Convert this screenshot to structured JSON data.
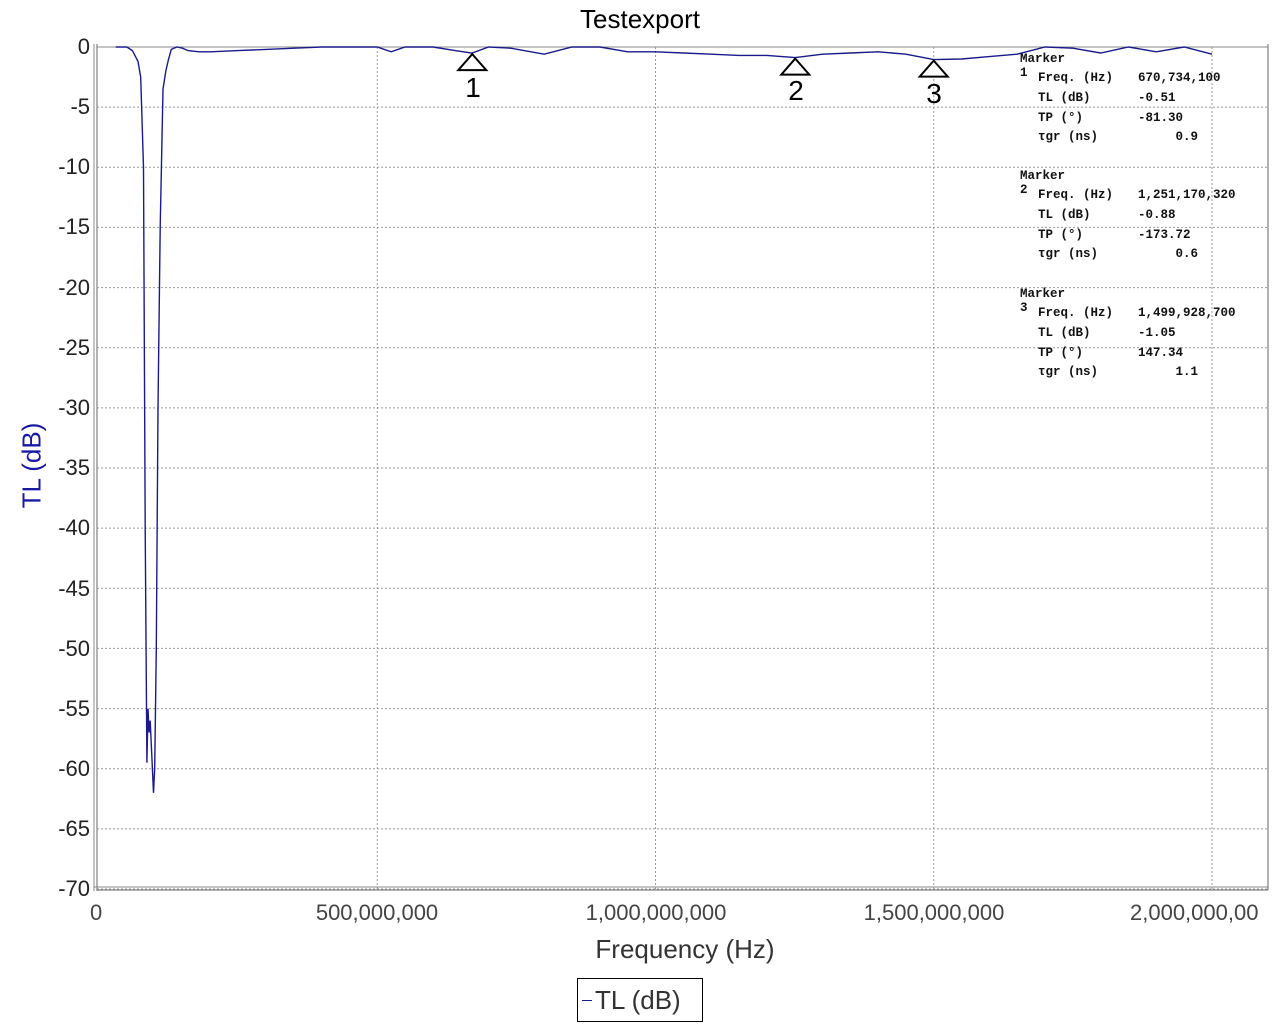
{
  "chart_data": {
    "type": "line",
    "title": "Testexport",
    "xlabel": "Frequency (Hz)",
    "ylabel": "TL (dB)",
    "xlim": [
      0,
      2000000000
    ],
    "ylim": [
      -70,
      0
    ],
    "grid": true,
    "legend_position": "bottom",
    "x_ticks": [
      "0",
      "500,000,000",
      "1,000,000,000",
      "1,500,000,000",
      "2,000,000,00"
    ],
    "y_ticks": [
      "0",
      "-5",
      "-10",
      "-15",
      "-20",
      "-25",
      "-30",
      "-35",
      "-40",
      "-45",
      "-50",
      "-55",
      "-60",
      "-65",
      "-70"
    ],
    "series": [
      {
        "name": "TL (dB)",
        "color": "#1a1a8a",
        "x": [
          30000000,
          50000000,
          60000000,
          70000000,
          75000000,
          80000000,
          83000000,
          86000000,
          88000000,
          90000000,
          92000000,
          94000000,
          96000000,
          98000000,
          100000000,
          103000000,
          106000000,
          110000000,
          115000000,
          120000000,
          125000000,
          130000000,
          140000000,
          150000000,
          160000000,
          180000000,
          200000000,
          250000000,
          300000000,
          350000000,
          400000000,
          450000000,
          500000000,
          525000000,
          550000000,
          600000000,
          640000000,
          670000000,
          700000000,
          740000000,
          800000000,
          850000000,
          900000000,
          950000000,
          1000000000,
          1050000000,
          1100000000,
          1150000000,
          1200000000,
          1251000000,
          1300000000,
          1350000000,
          1400000000,
          1450000000,
          1500000000,
          1550000000,
          1600000000,
          1650000000,
          1700000000,
          1750000000,
          1800000000,
          1850000000,
          1900000000,
          1950000000,
          2000000000
        ],
        "y": [
          0,
          0,
          -0.3,
          -1.2,
          -2.5,
          -10,
          -40,
          -59.5,
          -55,
          -57,
          -56,
          -58,
          -60,
          -62,
          -60,
          -50,
          -30,
          -15,
          -3.5,
          -2,
          -1,
          -0.2,
          0,
          -0.1,
          -0.3,
          -0.4,
          -0.4,
          -0.3,
          -0.2,
          -0.1,
          0,
          0,
          0,
          -0.4,
          0,
          0,
          -0.3,
          -0.51,
          0,
          -0.1,
          -0.6,
          0,
          0,
          -0.4,
          -0.4,
          -0.5,
          -0.6,
          -0.7,
          -0.7,
          -0.88,
          -0.6,
          -0.5,
          -0.4,
          -0.6,
          -1.05,
          -1.0,
          -0.8,
          -0.6,
          0,
          -0.1,
          -0.5,
          0,
          -0.4,
          0,
          -0.6
        ]
      }
    ],
    "markers": [
      {
        "id": "1",
        "freq_hz": 670734100,
        "tl_db": -0.51,
        "tp_deg": -81.3,
        "tgr_ns": 0.9
      },
      {
        "id": "2",
        "freq_hz": 1251170320,
        "tl_db": -0.88,
        "tp_deg": -173.72,
        "tgr_ns": 0.6
      },
      {
        "id": "3",
        "freq_hz": 1499928700,
        "tl_db": -1.05,
        "tp_deg": 147.34,
        "tgr_ns": 1.1
      }
    ]
  },
  "title": "Testexport",
  "axes": {
    "xlabel": "Frequency (Hz)",
    "ylabel": "TL (dB)",
    "xticks": [
      "0",
      "500,000,000",
      "1,000,000,000",
      "1,500,000,000",
      "2,000,000,00"
    ],
    "yticks": [
      "0",
      "-5",
      "-10",
      "-15",
      "-20",
      "-25",
      "-30",
      "-35",
      "-40",
      "-45",
      "-50",
      "-55",
      "-60",
      "-65",
      "-70"
    ]
  },
  "legend": {
    "label": "TL (dB)"
  },
  "marker_labels": [
    "1",
    "2",
    "3"
  ],
  "marker_panels": [
    {
      "title": "Marker 1",
      "rows": [
        {
          "label": "Freq. (Hz)",
          "value": "670,734,100"
        },
        {
          "label": "TL (dB)",
          "value": "-0.51"
        },
        {
          "label": "TP (°)",
          "value": "-81.30"
        },
        {
          "label": "τgr (ns)",
          "value": "     0.9"
        }
      ]
    },
    {
      "title": "Marker 2",
      "rows": [
        {
          "label": "Freq. (Hz)",
          "value": "1,251,170,320"
        },
        {
          "label": "TL (dB)",
          "value": "-0.88"
        },
        {
          "label": "TP (°)",
          "value": "-173.72"
        },
        {
          "label": "τgr (ns)",
          "value": "     0.6"
        }
      ]
    },
    {
      "title": "Marker 3",
      "rows": [
        {
          "label": "Freq. (Hz)",
          "value": "1,499,928,700"
        },
        {
          "label": "TL (dB)",
          "value": "-1.05"
        },
        {
          "label": "TP (°)",
          "value": "147.34"
        },
        {
          "label": "τgr (ns)",
          "value": "     1.1"
        }
      ]
    }
  ]
}
